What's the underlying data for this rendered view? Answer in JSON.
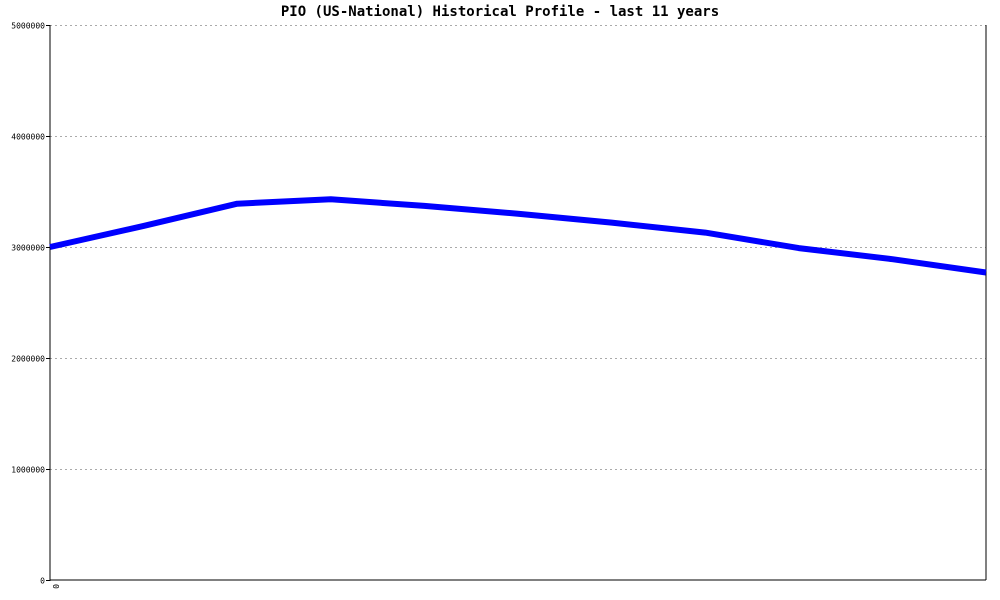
{
  "chart_data": {
    "type": "line",
    "title": "PIO (US-National) Historical Profile - last 11 years",
    "xlabel": "",
    "ylabel": "",
    "x_tick_labels": [
      "0"
    ],
    "y_tick_labels": [
      "0",
      "1000000",
      "2000000",
      "3000000",
      "4000000",
      "5000000"
    ],
    "ylim": [
      0,
      5000000
    ],
    "y_ticks": [
      0,
      1000000,
      2000000,
      3000000,
      4000000,
      5000000
    ],
    "grid": true,
    "legend": "none",
    "series": [
      {
        "color": "#0000ff",
        "values": [
          3000000,
          3190000,
          3390000,
          3430000,
          3370000,
          3300000,
          3220000,
          3130000,
          2990000,
          2890000,
          2770000
        ]
      }
    ]
  }
}
